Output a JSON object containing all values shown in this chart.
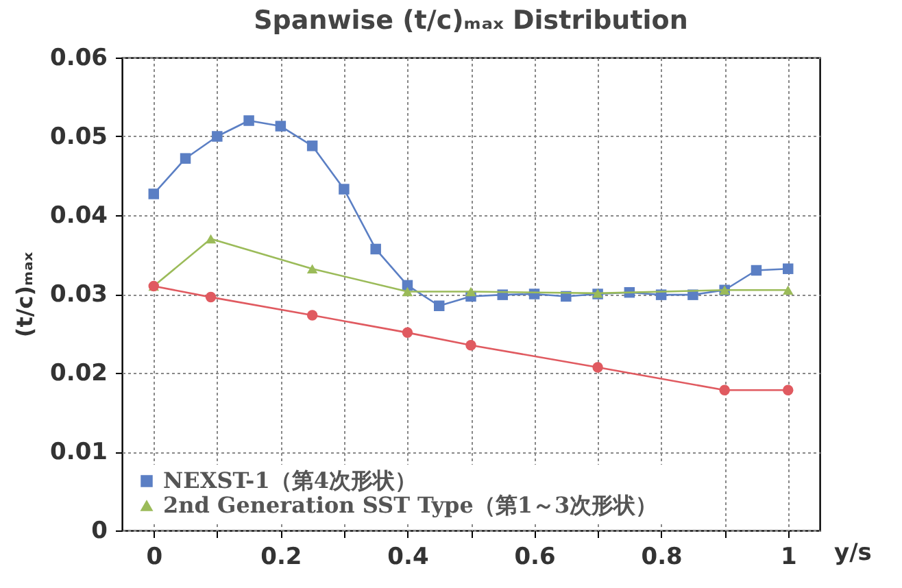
{
  "chart_data": {
    "type": "line",
    "title": "Spanwise (t/c)ₘₐₓ Distribution",
    "xlabel": "y/s",
    "ylabel": "(t/c)ₘₐₓ",
    "xlim": [
      -0.05,
      1.05
    ],
    "xticks": [
      0,
      {
        "value": 0.1,
        "label": null
      },
      0.2,
      {
        "value": 0.3,
        "label": null
      },
      0.4,
      {
        "value": 0.5,
        "label": null
      },
      0.6,
      {
        "value": 0.7,
        "label": null
      },
      0.8,
      {
        "value": 0.9,
        "label": null
      },
      1
    ],
    "ylim": [
      0,
      0.06
    ],
    "yticks": [
      0,
      0.01,
      0.02,
      0.03,
      0.04,
      0.05,
      0.06
    ],
    "grid": true,
    "legend": "bottom left",
    "series": [
      {
        "name": "NEXST-1（第4次形状）",
        "color": "#5b7fc4",
        "marker": "square",
        "x": [
          0,
          0.05,
          0.1,
          0.15,
          0.2,
          0.25,
          0.3,
          0.35,
          0.4,
          0.45,
          0.5,
          0.55,
          0.6,
          0.65,
          0.7,
          0.75,
          0.8,
          0.85,
          0.9,
          0.95,
          1
        ],
        "values": [
          0.0427,
          0.0472,
          0.05,
          0.052,
          0.0513,
          0.0488,
          0.0433,
          0.0357,
          0.0311,
          0.0285,
          0.0297,
          0.0299,
          0.03,
          0.0297,
          0.03,
          0.0302,
          0.0299,
          0.0299,
          0.0305,
          0.033,
          0.0332
        ]
      },
      {
        "name": "2nd Generation SST Type（第1～3次形状）",
        "color": "#9bbb59",
        "marker": "triangle",
        "x": [
          0,
          0.09,
          0.25,
          0.4,
          0.5,
          0.7,
          0.9,
          1
        ],
        "values": [
          0.031,
          0.037,
          0.0332,
          0.0303,
          0.0303,
          0.0301,
          0.0305,
          0.0305
        ]
      },
      {
        "color": "#e05a60",
        "marker": "circle",
        "x": [
          0,
          0.09,
          0.25,
          0.4,
          0.5,
          0.7,
          0.9,
          1
        ],
        "values": [
          0.031,
          0.0296,
          0.0273,
          0.0251,
          0.0235,
          0.0207,
          0.0178,
          0.0178
        ]
      }
    ]
  }
}
